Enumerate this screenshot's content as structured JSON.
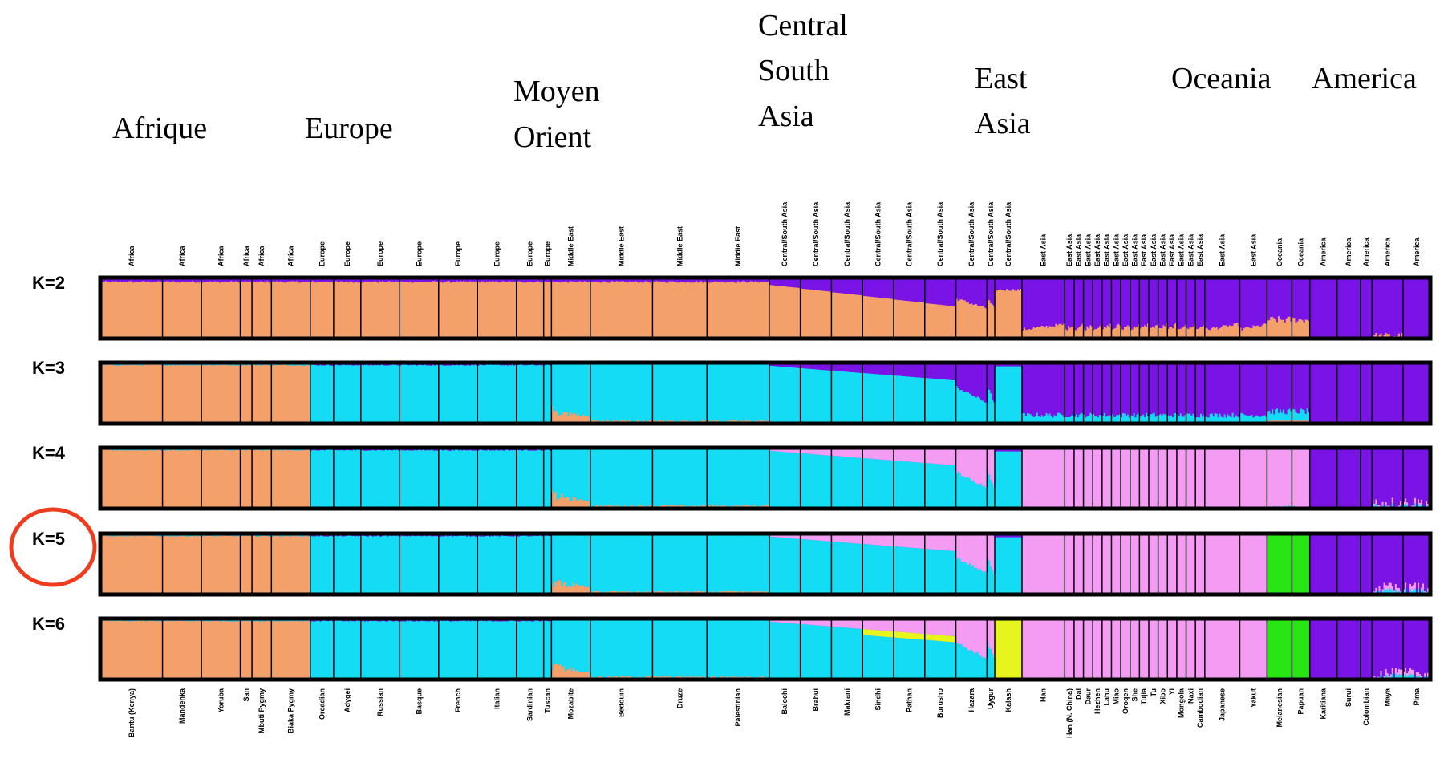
{
  "chart_data": {
    "type": "bar",
    "subtype": "stacked-admixture",
    "regions": [
      {
        "lines": [
          "Afrique"
        ]
      },
      {
        "lines": [
          "Europe"
        ]
      },
      {
        "lines": [
          "Moyen",
          "Orient"
        ]
      },
      {
        "lines": [
          "Central",
          "South",
          "Asia"
        ]
      },
      {
        "lines": [
          "East",
          "Asia"
        ]
      },
      {
        "lines": [
          "Oceania"
        ]
      },
      {
        "lines": [
          "America"
        ]
      }
    ],
    "k_labels": [
      "K=2",
      "K=3",
      "K=4",
      "K=5",
      "K=6"
    ],
    "highlighted_k": "K=5",
    "highlight_color": "#f03c1e",
    "colors": {
      "african": "#f4a06a",
      "european": "#14dcf4",
      "american": "#7a14e6",
      "east_asian": "#f49cf4",
      "oceanian": "#28e614",
      "kalash": "#e6f51e"
    },
    "top_labels": [
      "Africa",
      "Africa",
      "Africa",
      "Africa",
      "Africa",
      "Africa",
      "Europe",
      "Europe",
      "Europe",
      "Europe",
      "Europe",
      "Europe",
      "Europe",
      "Europe",
      "Middle East",
      "Middle East",
      "Middle East",
      "Middle East",
      "Central/South Asia",
      "Central/South Asia",
      "Central/South Asia",
      "Central/South Asia",
      "Central/South Asia",
      "Central/South Asia",
      "Central/South Asia",
      "Central/South Asia",
      "Central/South Asia",
      "East Asia",
      "East Asia",
      "East Asia",
      "East Asia",
      "East Asia",
      "East Asia",
      "East Asia",
      "East Asia",
      "East Asia",
      "East Asia",
      "East Asia",
      "East Asia",
      "East Asia",
      "East Asia",
      "East Asia",
      "East Asia",
      "East Asia",
      "East Asia",
      "Oceania",
      "Oceania",
      "America",
      "America",
      "America",
      "America",
      "America"
    ],
    "populations": [
      {
        "name": "Bantu (Kenya)",
        "w": 8,
        "r": "AF"
      },
      {
        "name": "Mandenka",
        "w": 5,
        "r": "AF"
      },
      {
        "name": "Yoruba",
        "w": 5,
        "r": "AF"
      },
      {
        "name": "San",
        "w": 1.5,
        "r": "AF"
      },
      {
        "name": "Mbuti Pygmy",
        "w": 2.5,
        "r": "AF"
      },
      {
        "name": "Biaka Pygmy",
        "w": 5,
        "r": "AF"
      },
      {
        "name": "Orcadian",
        "w": 3,
        "r": "EU"
      },
      {
        "name": "Adygei",
        "w": 3.5,
        "r": "EU"
      },
      {
        "name": "Russian",
        "w": 5,
        "r": "EU"
      },
      {
        "name": "Basque",
        "w": 5,
        "r": "EU"
      },
      {
        "name": "French",
        "w": 5,
        "r": "EU"
      },
      {
        "name": "Italian",
        "w": 5,
        "r": "EU"
      },
      {
        "name": "Sardinian",
        "w": 3.5,
        "r": "EU"
      },
      {
        "name": "Tuscan",
        "w": 1,
        "r": "EU"
      },
      {
        "name": "Mozabite",
        "w": 5,
        "r": "ME"
      },
      {
        "name": "Bedouin",
        "w": 8,
        "r": "ME"
      },
      {
        "name": "Druze",
        "w": 7,
        "r": "ME"
      },
      {
        "name": "Palestinian",
        "w": 8,
        "r": "ME"
      },
      {
        "name": "Balochi",
        "w": 4,
        "r": "CSA"
      },
      {
        "name": "Brahui",
        "w": 4,
        "r": "CSA"
      },
      {
        "name": "Makrani",
        "w": 4,
        "r": "CSA"
      },
      {
        "name": "Sindhi",
        "w": 4,
        "r": "CSA"
      },
      {
        "name": "Pathan",
        "w": 4,
        "r": "CSA"
      },
      {
        "name": "Burusho",
        "w": 4,
        "r": "CSA"
      },
      {
        "name": "Hazara",
        "w": 4,
        "r": "CSA"
      },
      {
        "name": "Uygur",
        "w": 1,
        "r": "CSA"
      },
      {
        "name": "Kalash",
        "w": 3.5,
        "r": "CSA"
      },
      {
        "name": "Han",
        "w": 5.5,
        "r": "EA"
      },
      {
        "name": "Han (N. China)",
        "w": 1.2,
        "r": "EA"
      },
      {
        "name": "Dai",
        "w": 1.2,
        "r": "EA"
      },
      {
        "name": "Daur",
        "w": 1.2,
        "r": "EA"
      },
      {
        "name": "Hezhen",
        "w": 1.2,
        "r": "EA"
      },
      {
        "name": "Lahu",
        "w": 1.2,
        "r": "EA"
      },
      {
        "name": "Miao",
        "w": 1.2,
        "r": "EA"
      },
      {
        "name": "Oroqen",
        "w": 1.2,
        "r": "EA"
      },
      {
        "name": "She",
        "w": 1.2,
        "r": "EA"
      },
      {
        "name": "Tujia",
        "w": 1.2,
        "r": "EA"
      },
      {
        "name": "Tu",
        "w": 1.2,
        "r": "EA"
      },
      {
        "name": "Xibo",
        "w": 1.2,
        "r": "EA"
      },
      {
        "name": "Yi",
        "w": 1.2,
        "r": "EA"
      },
      {
        "name": "Mongola",
        "w": 1.2,
        "r": "EA"
      },
      {
        "name": "Naxi",
        "w": 1.2,
        "r": "EA"
      },
      {
        "name": "Cambodian",
        "w": 1.2,
        "r": "EA"
      },
      {
        "name": "Japanese",
        "w": 4.5,
        "r": "EA"
      },
      {
        "name": "Yakut",
        "w": 3.5,
        "r": "EA"
      },
      {
        "name": "Melanesian",
        "w": 3.2,
        "r": "OC"
      },
      {
        "name": "Papuan",
        "w": 2.3,
        "r": "OC"
      },
      {
        "name": "Karitiana",
        "w": 3.5,
        "r": "AM"
      },
      {
        "name": "Surui",
        "w": 3,
        "r": "AM"
      },
      {
        "name": "Colombian",
        "w": 1.5,
        "r": "AM"
      },
      {
        "name": "Maya",
        "w": 4,
        "r": "AM"
      },
      {
        "name": "Pima",
        "w": 3.5,
        "r": "AM"
      }
    ]
  }
}
